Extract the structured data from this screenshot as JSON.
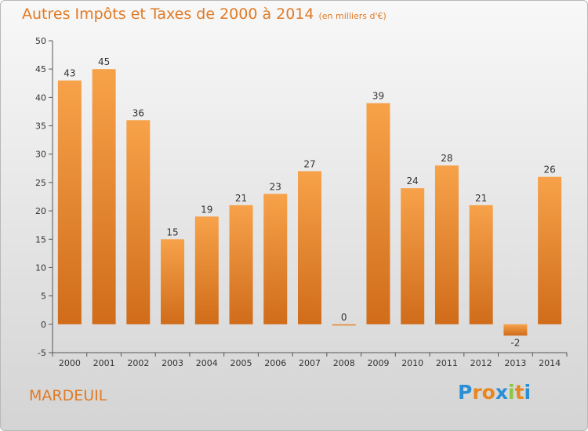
{
  "title": "Autres Impôts et Taxes de 2000 à 2014",
  "subtitle": "(en milliers d'€)",
  "commune": "MARDEUIL",
  "logo": {
    "letters": [
      "P",
      "r",
      "o",
      "x",
      "i",
      "t",
      "i"
    ],
    "colors": [
      "#2a8fd4",
      "#e8871e",
      "#e8871e",
      "#2a8fd4",
      "#8cc63f",
      "#e8871e",
      "#2a8fd4"
    ]
  },
  "colors": {
    "bar_top": "#f7a24a",
    "bar_bottom": "#d06c1a",
    "accent": "#e07a24"
  },
  "chart_data": {
    "type": "bar",
    "title": "Autres Impôts et Taxes de 2000 à 2014",
    "subtitle": "(en milliers d'€)",
    "categories": [
      "2000",
      "2001",
      "2002",
      "2003",
      "2004",
      "2005",
      "2006",
      "2007",
      "2008",
      "2009",
      "2010",
      "2011",
      "2012",
      "2013",
      "2014"
    ],
    "values": [
      43,
      45,
      36,
      15,
      19,
      21,
      23,
      27,
      0,
      39,
      24,
      28,
      21,
      -2,
      26
    ],
    "data_labels": [
      "43",
      "45",
      "36",
      "15",
      "19",
      "21",
      "23",
      "27",
      "0",
      "39",
      "24",
      "28",
      "21",
      "-2",
      "26"
    ],
    "ylim": [
      -5,
      50
    ],
    "yticks": [
      -5,
      0,
      5,
      10,
      15,
      20,
      25,
      30,
      35,
      40,
      45,
      50
    ],
    "ytick_labels": [
      "-5",
      "0",
      "5",
      "10",
      "15",
      "20",
      "25",
      "30",
      "35",
      "40",
      "45",
      "50"
    ],
    "grid": false
  }
}
